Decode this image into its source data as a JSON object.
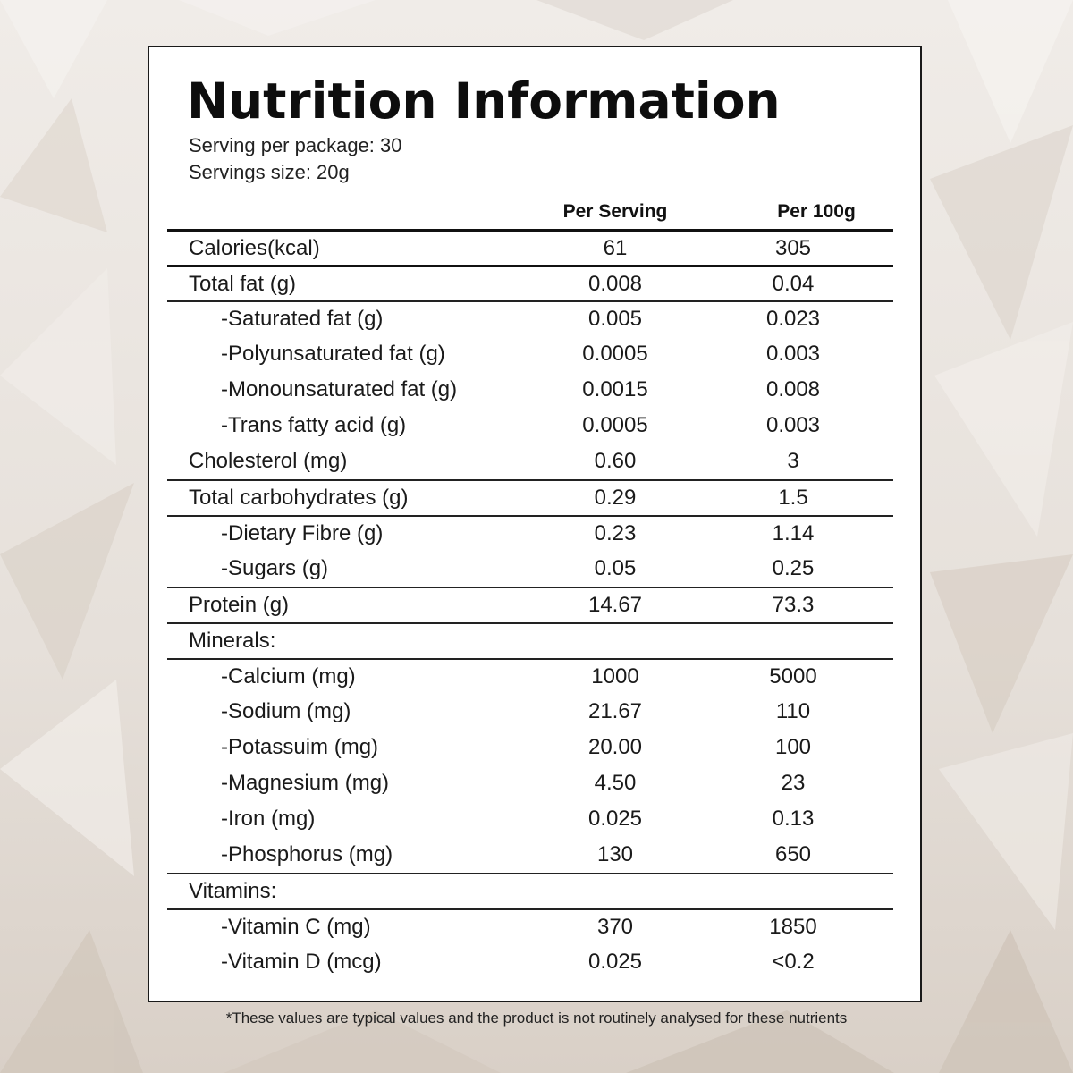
{
  "label": {
    "title": "Nutrition Information",
    "servings_per_package": "Serving per package: 30",
    "serving_size": "Servings size: 20g",
    "columns": [
      "Per Serving",
      "Per 100g"
    ],
    "rows": [
      {
        "name": "Calories(kcal)",
        "per_serving": "61",
        "per_100g": "305"
      },
      {
        "name": "Total fat (g)",
        "per_serving": "0.008",
        "per_100g": "0.04"
      },
      {
        "name": "-Saturated fat (g)",
        "per_serving": "0.005",
        "per_100g": "0.023"
      },
      {
        "name": "-Polyunsaturated fat (g)",
        "per_serving": "0.0005",
        "per_100g": "0.003"
      },
      {
        "name": "-Monounsaturated fat (g)",
        "per_serving": "0.0015",
        "per_100g": "0.008"
      },
      {
        "name": "-Trans fatty acid (g)",
        "per_serving": "0.0005",
        "per_100g": "0.003"
      },
      {
        "name": "Cholesterol (mg)",
        "per_serving": "0.60",
        "per_100g": "3"
      },
      {
        "name": "Total carbohydrates (g)",
        "per_serving": "0.29",
        "per_100g": "1.5"
      },
      {
        "name": "-Dietary Fibre (g)",
        "per_serving": "0.23",
        "per_100g": "1.14"
      },
      {
        "name": "-Sugars (g)",
        "per_serving": "0.05",
        "per_100g": "0.25"
      },
      {
        "name": "Protein (g)",
        "per_serving": "14.67",
        "per_100g": "73.3"
      },
      {
        "name": "Minerals:",
        "per_serving": "",
        "per_100g": ""
      },
      {
        "name": "-Calcium (mg)",
        "per_serving": "1000",
        "per_100g": "5000"
      },
      {
        "name": "-Sodium (mg)",
        "per_serving": "21.67",
        "per_100g": "110"
      },
      {
        "name": "-Potassuim (mg)",
        "per_serving": "20.00",
        "per_100g": "100"
      },
      {
        "name": "-Magnesium (mg)",
        "per_serving": "4.50",
        "per_100g": "23"
      },
      {
        "name": "-Iron (mg)",
        "per_serving": "0.025",
        "per_100g": "0.13"
      },
      {
        "name": "-Phosphorus (mg)",
        "per_serving": "130",
        "per_100g": "650"
      },
      {
        "name": "Vitamins:",
        "per_serving": "",
        "per_100g": ""
      },
      {
        "name": "-Vitamin C (mg)",
        "per_serving": "370",
        "per_100g": "1850"
      },
      {
        "name": "-Vitamin D (mcg)",
        "per_serving": "0.025",
        "per_100g": "<0.2"
      }
    ]
  },
  "footnote": "*These values are typical values and the product is not routinely analysed for these nutrients",
  "colors": {
    "background": "#ebe6e1",
    "panel": "#ffffff",
    "text": "#111111"
  }
}
